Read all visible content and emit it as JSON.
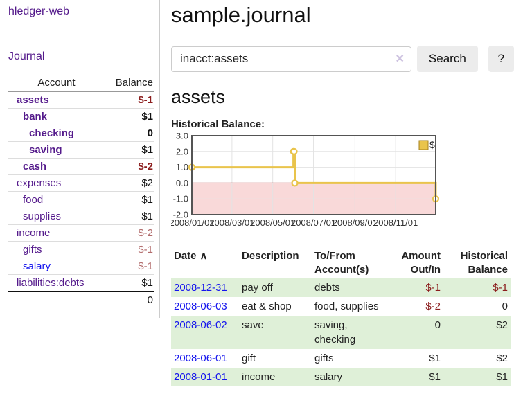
{
  "app": {
    "brand": "hledger-web"
  },
  "sidebar": {
    "nav": {
      "journal": "Journal"
    },
    "accounts": {
      "headers": {
        "account": "Account",
        "balance": "Balance"
      },
      "rows": [
        {
          "name": "assets",
          "depth": 1,
          "emphasis": true,
          "balance": "$-1",
          "negative": "strong"
        },
        {
          "name": "bank",
          "depth": 2,
          "emphasis": true,
          "balance": "$1"
        },
        {
          "name": "checking",
          "depth": 3,
          "emphasis": true,
          "balance": "0"
        },
        {
          "name": "saving",
          "depth": 3,
          "emphasis": true,
          "balance": "$1"
        },
        {
          "name": "cash",
          "depth": 2,
          "emphasis": true,
          "balance": "$-2",
          "negative": "strong"
        },
        {
          "name": "expenses",
          "depth": 1,
          "balance": "$2"
        },
        {
          "name": "food",
          "depth": 2,
          "balance": "$1"
        },
        {
          "name": "supplies",
          "depth": 2,
          "balance": "$1"
        },
        {
          "name": "income",
          "depth": 1,
          "balance": "$-2",
          "negative": "muted"
        },
        {
          "name": "gifts",
          "depth": 2,
          "balance": "$-1",
          "negative": "muted"
        },
        {
          "name": "salary",
          "depth": 2,
          "blue": true,
          "balance": "$-1",
          "negative": "muted"
        },
        {
          "name": "liabilities:debts",
          "depth": 1,
          "balance": "$1"
        }
      ],
      "total": "0"
    }
  },
  "main": {
    "title": "sample.journal",
    "search": {
      "value": "inacct:assets",
      "clear_icon": "✕",
      "search_button": "Search",
      "help_button": "?"
    },
    "account_heading": "assets",
    "register": {
      "headers": [
        "Date",
        "Description",
        "To/From Account(s)",
        "Amount Out/In",
        "Historical Balance"
      ],
      "sort_icon": "∧",
      "rows": [
        {
          "date": "2008-12-31",
          "description": "pay off",
          "accounts": "debts",
          "amount": "$-1",
          "balance": "$-1",
          "amount_negative": true,
          "balance_negative": true
        },
        {
          "date": "2008-06-03",
          "description": "eat & shop",
          "accounts": "food, supplies",
          "amount": "$-2",
          "balance": "0",
          "amount_negative": true
        },
        {
          "date": "2008-06-02",
          "description": "save",
          "accounts": "saving, checking",
          "amount": "0",
          "balance": "$2"
        },
        {
          "date": "2008-06-01",
          "description": "gift",
          "accounts": "gifts",
          "amount": "$1",
          "balance": "$2"
        },
        {
          "date": "2008-01-01",
          "description": "income",
          "accounts": "salary",
          "amount": "$1",
          "balance": "$1"
        }
      ]
    }
  },
  "chart_data": {
    "type": "line",
    "step": true,
    "title": "Historical Balance:",
    "x_range": [
      "2008-01-01",
      "2008-12-31"
    ],
    "ylim": [
      -2.0,
      3.0
    ],
    "yticks": [
      "3.0",
      "2.0",
      "1.0",
      "0.0",
      "-1.0",
      "-2.0"
    ],
    "xticks": [
      "2008/01/01",
      "2008/03/01",
      "2008/05/01",
      "2008/07/01",
      "2008/09/01",
      "2008/11/01"
    ],
    "series": [
      {
        "name": "$",
        "points": [
          [
            "2008-01-01",
            1
          ],
          [
            "2008-06-01",
            2
          ],
          [
            "2008-06-02",
            2
          ],
          [
            "2008-06-03",
            0
          ],
          [
            "2008-12-31",
            -1
          ]
        ]
      }
    ],
    "legend": [
      "$"
    ],
    "legend_position": "top-right",
    "grid": true,
    "colors": {
      "line": "#e9c44c",
      "negative_region": "#f9d9d9",
      "zero_line": "#990000",
      "grid": "#e3e3e3",
      "border": "#545454"
    }
  }
}
